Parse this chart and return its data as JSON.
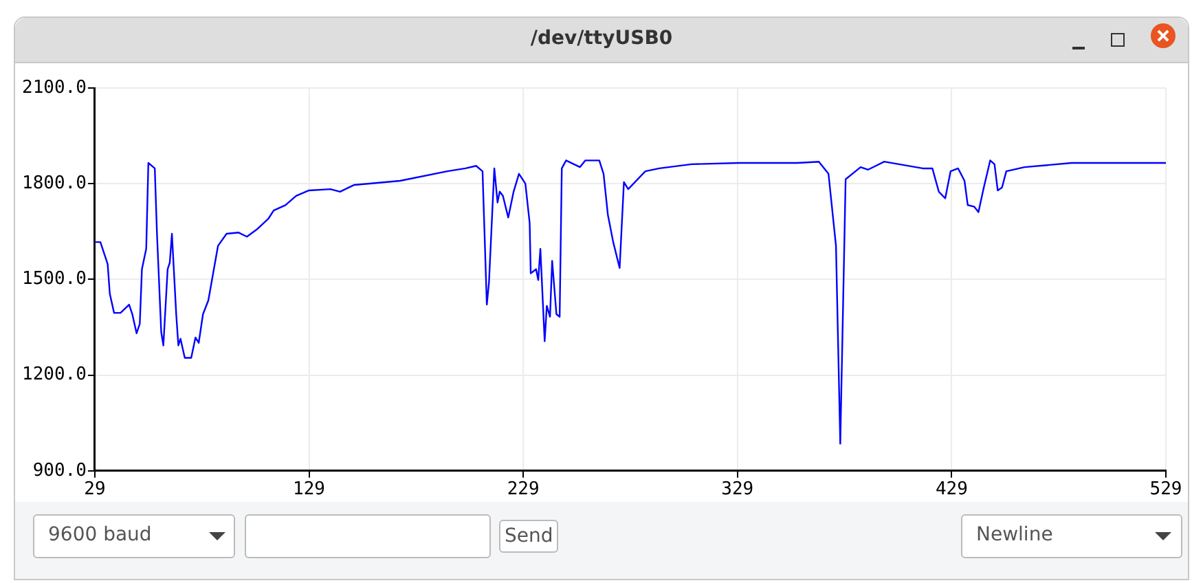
{
  "chart_data": {
    "type": "line",
    "title": "/dev/ttyUSB0",
    "x": [
      29,
      31.6,
      35,
      36,
      38,
      41,
      45,
      46.5,
      48.5,
      50,
      51,
      53,
      54,
      57,
      58,
      60,
      61,
      63,
      64,
      65,
      67,
      68,
      69,
      71,
      74,
      76,
      77.5,
      79.5,
      82,
      84,
      86.5,
      90.5,
      96,
      100,
      104.5,
      110,
      112.5,
      118,
      123,
      129,
      139,
      143.5,
      150,
      156.5,
      171.5,
      193.5,
      202,
      207,
      210,
      212,
      213,
      215.5,
      217,
      218,
      219.5,
      222,
      224.5,
      227,
      230,
      232,
      232.5,
      235,
      236,
      237,
      239,
      240,
      241.5,
      242.5,
      244.5,
      246,
      247,
      249,
      255.5,
      258,
      264.5,
      266.5,
      268.5,
      271,
      274,
      276,
      278,
      286,
      292.5,
      307.5,
      329.5,
      357,
      367,
      371.5,
      375,
      377,
      379.5,
      386.5,
      390,
      397.5,
      415.5,
      420,
      423,
      426,
      428.5,
      432,
      435,
      436.5,
      439.5,
      441.5,
      444,
      447,
      449,
      450.5,
      452.5,
      454.5,
      463,
      485,
      506,
      527.5,
      529
    ],
    "series": [
      {
        "color": "#0000ff",
        "values": [
          1617,
          1617,
          1548,
          1455,
          1395,
          1395,
          1421,
          1391,
          1331,
          1361,
          1532,
          1596,
          1865,
          1848,
          1647,
          1335,
          1293,
          1532,
          1553,
          1643,
          1391,
          1293,
          1314,
          1254,
          1254,
          1318,
          1301,
          1391,
          1434,
          1510,
          1605,
          1643,
          1647,
          1634,
          1656,
          1690,
          1716,
          1733,
          1762,
          1779,
          1783,
          1775,
          1796,
          1800,
          1809,
          1839,
          1848,
          1856,
          1839,
          1421,
          1489,
          1848,
          1741,
          1775,
          1762,
          1694,
          1775,
          1831,
          1800,
          1677,
          1519,
          1532,
          1498,
          1596,
          1306,
          1417,
          1383,
          1558,
          1391,
          1383,
          1848,
          1873,
          1852,
          1873,
          1873,
          1831,
          1703,
          1617,
          1536,
          1805,
          1783,
          1839,
          1848,
          1861,
          1865,
          1865,
          1869,
          1831,
          1605,
          985,
          1814,
          1852,
          1844,
          1869,
          1848,
          1848,
          1775,
          1754,
          1839,
          1848,
          1809,
          1733,
          1728,
          1711,
          1788,
          1873,
          1861,
          1779,
          1788,
          1839,
          1852,
          1865,
          1865,
          1865,
          1865
        ]
      }
    ],
    "xlim": [
      29,
      529
    ],
    "xticks": [
      29,
      129,
      229,
      329,
      429,
      529
    ],
    "ylim": [
      900,
      2100
    ],
    "yticks": [
      {
        "value": 900,
        "label": "900.0"
      },
      {
        "value": 1200,
        "label": "1200.0"
      },
      {
        "value": 1500,
        "label": "1500.0"
      },
      {
        "value": 1800,
        "label": "1800.0"
      },
      {
        "value": 2100,
        "label": "2100.0"
      }
    ],
    "grid": true,
    "legend": false,
    "marker": "none",
    "line_style": "solid",
    "annotations": [
      "9600 baud",
      "Send",
      "Newline"
    ]
  }
}
